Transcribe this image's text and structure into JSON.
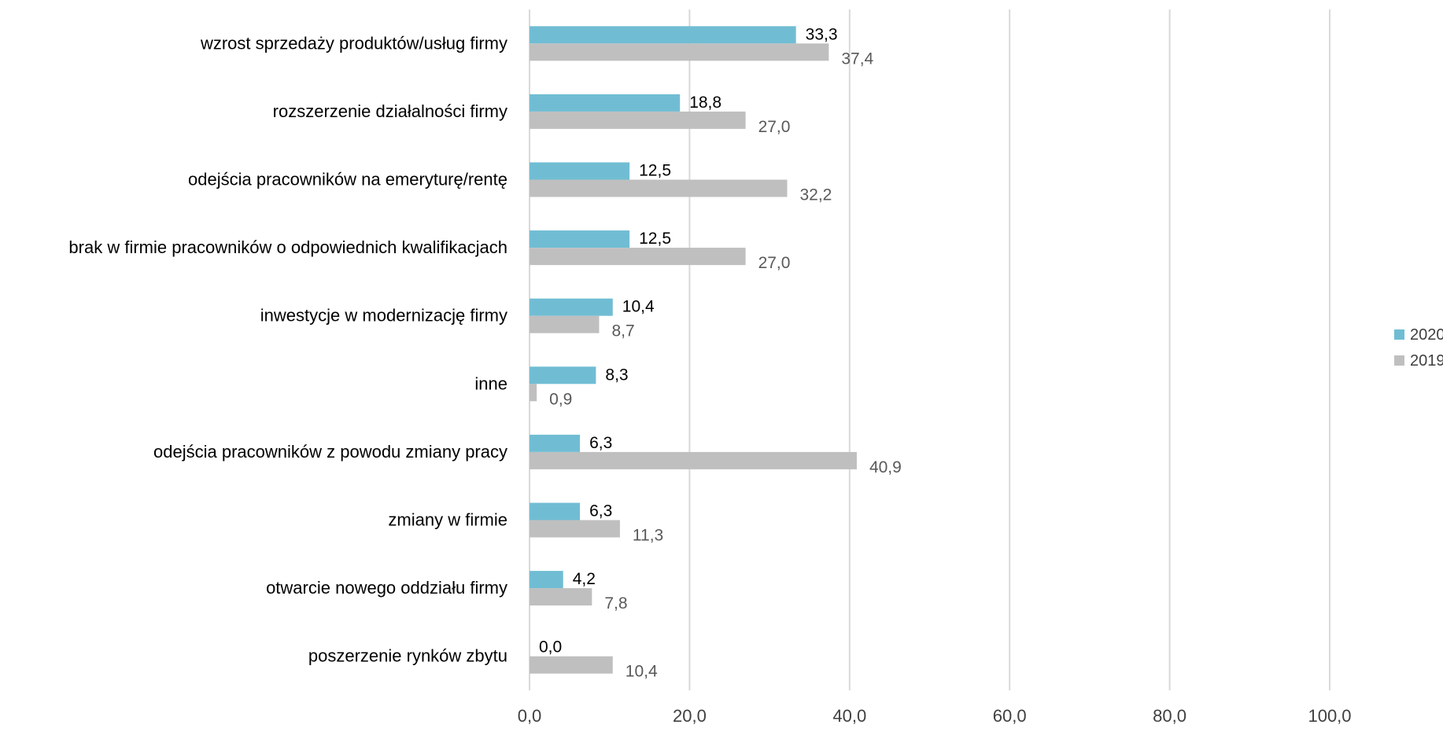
{
  "chart_data": {
    "type": "bar",
    "orientation": "horizontal",
    "categories": [
      "wzrost sprzedaży produktów/usług firmy",
      "rozszerzenie działalności firmy",
      "odejścia pracowników na emeryturę/rentę",
      "brak w firmie pracowników o odpowiednich kwalifikacjach",
      "inwestycje w modernizację firmy",
      "inne",
      "odejścia pracowników z powodu zmiany pracy",
      "zmiany w firmie",
      "otwarcie nowego oddziału firmy",
      "poszerzenie rynków zbytu"
    ],
    "series": [
      {
        "name": "2020",
        "color": "#70bdd3",
        "label_color": "#000000",
        "values": [
          33.3,
          18.8,
          12.5,
          12.5,
          10.4,
          8.3,
          6.3,
          6.3,
          4.2,
          0.0
        ],
        "labels": [
          "33,3",
          "18,8",
          "12,5",
          "12,5",
          "10,4",
          "8,3",
          "6,3",
          "6,3",
          "4,2",
          "0,0"
        ]
      },
      {
        "name": "2019",
        "color": "#bfbfbf",
        "label_color": "#595959",
        "values": [
          37.4,
          27.0,
          32.2,
          27.0,
          8.7,
          0.9,
          40.9,
          11.3,
          7.8,
          10.4
        ],
        "labels": [
          "37,4",
          "27,0",
          "32,2",
          "27,0",
          "8,7",
          "0,9",
          "40,9",
          "11,3",
          "7,8",
          "10,4"
        ]
      }
    ],
    "xlim": [
      0,
      100
    ],
    "x_ticks": [
      0,
      20,
      40,
      60,
      80,
      100
    ],
    "x_tick_labels": [
      "0,0",
      "20,0",
      "40,0",
      "60,0",
      "80,0",
      "100,0"
    ],
    "title": "",
    "xlabel": "",
    "ylabel": "",
    "grid": "vertical",
    "legend_position": "right",
    "gridline_color": "#d9d9d9",
    "text_color": "#000000",
    "tick_text_color": "#404040"
  }
}
